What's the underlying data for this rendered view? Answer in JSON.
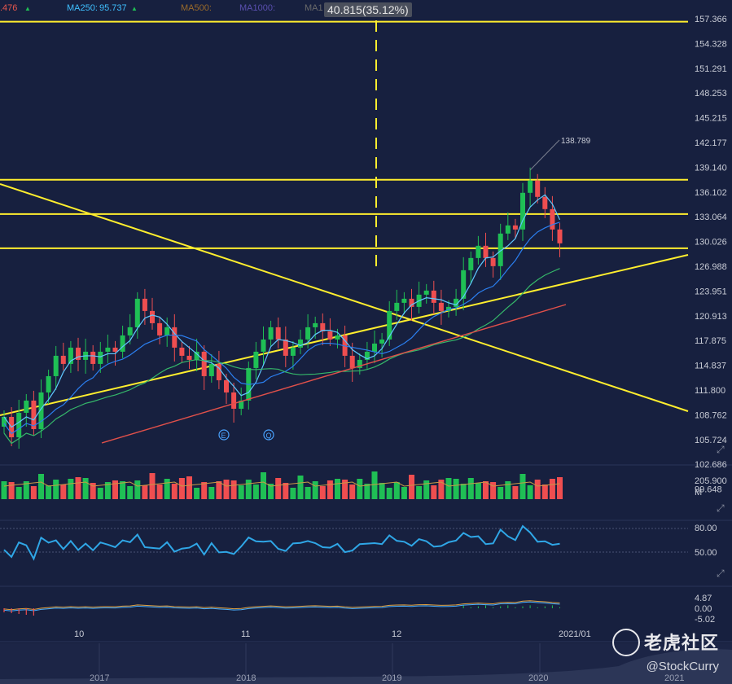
{
  "legend": {
    "first": {
      "value": ".476",
      "color": "#e8574d"
    },
    "ma250": {
      "label": "MA250:",
      "value": "95.737",
      "color": "#3fc0ff"
    },
    "ma500": {
      "label": "MA500:",
      "color": "#9a6a2a"
    },
    "ma1000": {
      "label": "MA1000:",
      "color": "#5a4fb0"
    },
    "ma_cut": {
      "label": "MA1",
      "color": "#6a6a6a"
    }
  },
  "measure": {
    "label": "40.815(35.12%)"
  },
  "price_axis": [
    "157.366",
    "154.328",
    "151.291",
    "148.253",
    "145.215",
    "142.177",
    "139.140",
    "136.102",
    "133.064",
    "130.026",
    "126.988",
    "123.951",
    "120.913",
    "117.875",
    "114.837",
    "111.800",
    "108.762",
    "105.724",
    "102.686",
    "99.648"
  ],
  "high_label": "138.789",
  "events": [
    "E",
    "Q"
  ],
  "volume_axis": {
    "value": "205.900",
    "unit": "M"
  },
  "rsi_axis": [
    "80.00",
    "50.00"
  ],
  "macd_axis": [
    "4.87",
    "0.00",
    "-5.02"
  ],
  "month_labels": [
    "10",
    "11",
    "12",
    "2021/01"
  ],
  "year_labels": [
    "2017",
    "2018",
    "2019",
    "2020",
    "2021"
  ],
  "watermark": {
    "brand": "老虎社区",
    "user": "@StockCurry"
  },
  "colors": {
    "up": "#1fbf55",
    "down": "#ef4e50",
    "hline": "#ffee2e",
    "ma_fast": "#5fc8ff",
    "ma_mid": "#2b7ff0",
    "ma_green": "#35b86a",
    "ma_red": "#e0504a"
  },
  "chart_data": {
    "type": "candlestick",
    "title": "",
    "y_axis_ticks": [
      157.366,
      154.328,
      151.291,
      148.253,
      145.215,
      142.177,
      139.14,
      136.102,
      133.064,
      130.026,
      126.988,
      123.951,
      120.913,
      117.875,
      114.837,
      111.8,
      108.762,
      105.724,
      102.686,
      99.648
    ],
    "horizontal_levels": [
      157.0,
      137.6,
      133.4,
      129.2
    ],
    "annotations": {
      "high": 138.789,
      "measure": "40.815(35.12%)"
    },
    "x_labels": [
      "10",
      "11",
      "12",
      "2021/01"
    ],
    "closes": [
      108.5,
      106.0,
      109.0,
      110.5,
      107.0,
      111.5,
      113.5,
      116.0,
      115.0,
      117.0,
      115.5,
      116.5,
      115.0,
      116.5,
      117.0,
      116.5,
      118.5,
      119.5,
      123.0,
      121.5,
      120.0,
      118.5,
      119.5,
      117.0,
      116.0,
      115.5,
      116.5,
      113.5,
      115.0,
      113.0,
      111.5,
      109.5,
      110.5,
      114.5,
      116.5,
      118.0,
      119.5,
      118.0,
      116.0,
      117.0,
      118.0,
      119.5,
      120.0,
      119.0,
      118.0,
      118.5,
      116.0,
      114.5,
      115.5,
      116.5,
      117.5,
      118.0,
      121.5,
      122.5,
      123.0,
      122.0,
      123.5,
      124.0,
      122.5,
      121.5,
      122.0,
      123.0,
      126.5,
      128.0,
      129.5,
      128.0,
      127.0,
      131.0,
      132.0,
      131.5,
      136.0,
      137.5,
      135.5,
      134.0,
      131.5,
      129.8
    ]
  }
}
